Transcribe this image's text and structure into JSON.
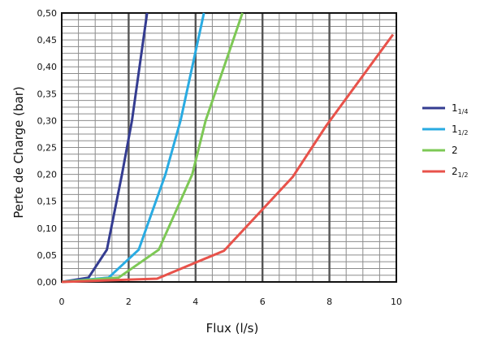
{
  "chart_data": {
    "type": "line",
    "xlabel": "Flux (l/s)",
    "ylabel": "Perte de Charge (bar)",
    "xlim": [
      0,
      10
    ],
    "ylim": [
      0,
      0.5
    ],
    "x_ticks": [
      0,
      2,
      4,
      6,
      8,
      10
    ],
    "x_tick_labels": [
      "0",
      "2",
      "4",
      "6",
      "8",
      "10"
    ],
    "y_ticks": [
      0,
      0.05,
      0.1,
      0.15,
      0.2,
      0.25,
      0.3,
      0.35,
      0.4,
      0.45,
      0.5
    ],
    "y_tick_labels": [
      "0,00",
      "0,05",
      "0,10",
      "0,15",
      "0,20",
      "0,25",
      "0,30",
      "0,35",
      "0,40",
      "0,45",
      "0,50"
    ],
    "grid": true,
    "legend_position": "right",
    "series": [
      {
        "name": "1",
        "name_sub": "1/4",
        "color": "#343c91",
        "points": [
          [
            0,
            0
          ],
          [
            0.8,
            0.008
          ],
          [
            1.35,
            0.06
          ],
          [
            1.8,
            0.2
          ],
          [
            2.1,
            0.3
          ],
          [
            2.55,
            0.5
          ]
        ]
      },
      {
        "name": "1",
        "name_sub": "1/2",
        "color": "#29abe2",
        "points": [
          [
            0,
            0
          ],
          [
            1.4,
            0.008
          ],
          [
            2.3,
            0.06
          ],
          [
            3.1,
            0.2
          ],
          [
            3.55,
            0.3
          ],
          [
            4.25,
            0.5
          ]
        ]
      },
      {
        "name": "2",
        "name_sub": "",
        "color": "#7dc855",
        "points": [
          [
            0,
            0
          ],
          [
            1.7,
            0.008
          ],
          [
            2.9,
            0.06
          ],
          [
            3.9,
            0.2
          ],
          [
            4.3,
            0.3
          ],
          [
            5.4,
            0.5
          ]
        ]
      },
      {
        "name": "2",
        "name_sub": "1/2",
        "color": "#e8524a",
        "points": [
          [
            0,
            0
          ],
          [
            2.85,
            0.006
          ],
          [
            4.85,
            0.058
          ],
          [
            6.9,
            0.195
          ],
          [
            7.9,
            0.29
          ],
          [
            9.9,
            0.46
          ]
        ]
      }
    ]
  }
}
